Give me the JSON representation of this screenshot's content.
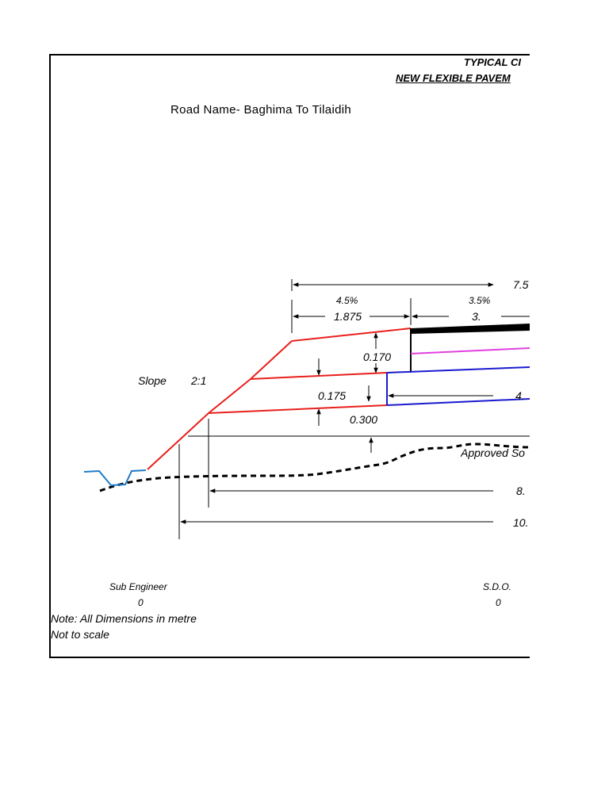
{
  "header": {
    "title_line1": "TYPICAL CI",
    "title_line2": "NEW FLEXIBLE PAVEM"
  },
  "road_name": "Road Name- Baghima To Tilaidih",
  "dimensions": {
    "total_top": "7.5",
    "camber_left": "4.5%",
    "camber_right": "3.5%",
    "shoulder_width": "1.875",
    "carriageway_half": "3.",
    "layer1_thickness": "0.170",
    "layer2_thickness": "0.175",
    "layer3_thickness": "0.300",
    "base_width": "4.",
    "formation_width": "8.",
    "total_width": "10."
  },
  "slope": {
    "label": "Slope",
    "ratio": "2:1"
  },
  "ground_label": "Approved So",
  "signatures": {
    "left_title": "Sub Engineer",
    "left_value": "0",
    "right_title": "S.D.O.",
    "right_value": "0"
  },
  "notes": {
    "line1": "Note: All Dimensions in metre",
    "line2": "Not to scale"
  },
  "colors": {
    "embankment": "#e8201c",
    "surface": "#000000",
    "wearing_course": "#e040e0",
    "base_course": "#1a1ad0",
    "drain": "#1e7ac8",
    "ground": "#000000"
  }
}
